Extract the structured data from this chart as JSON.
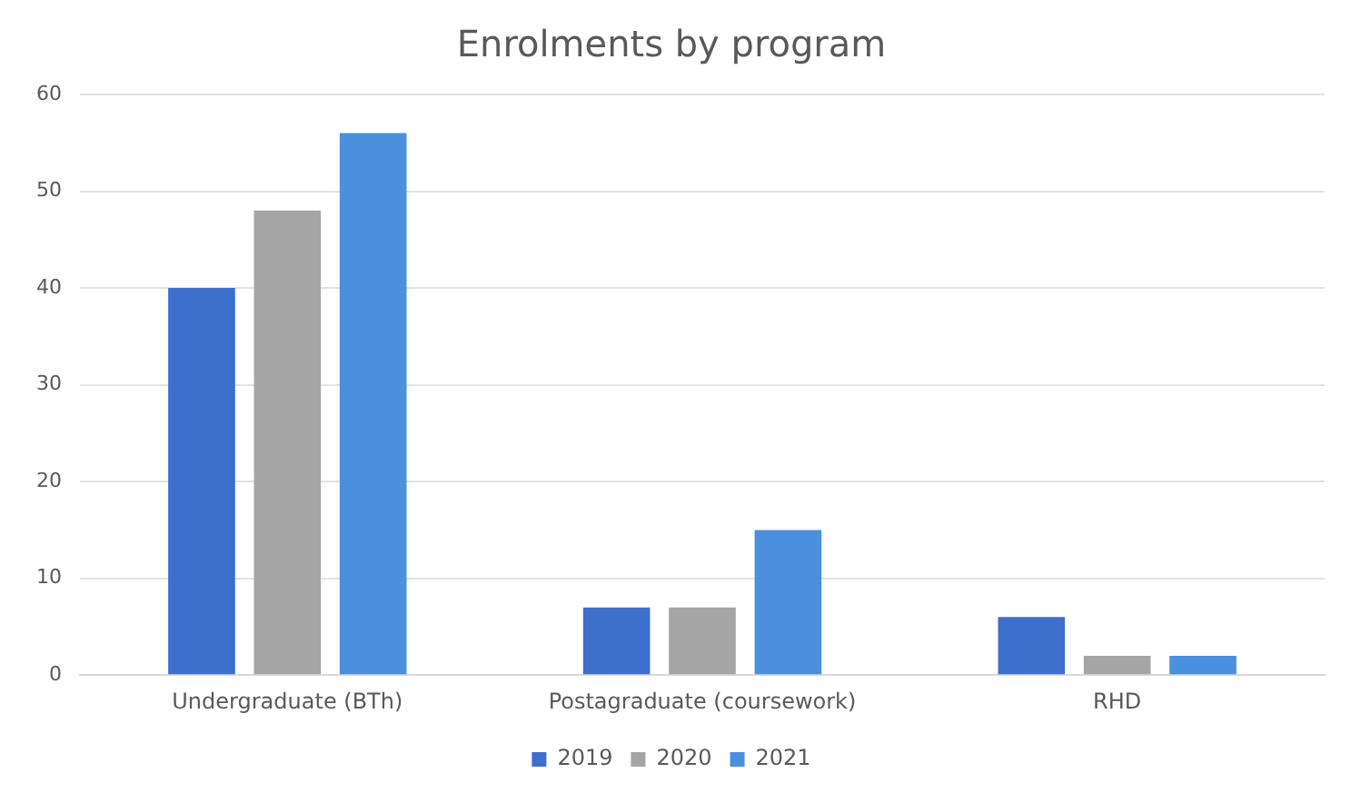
{
  "chart_data": {
    "type": "bar",
    "title": "Enrolments by program",
    "categories": [
      "Undergraduate (BTh)",
      "Postagraduate (coursework)",
      "RHD"
    ],
    "series": [
      {
        "name": "2019",
        "color": "#3d6fcc",
        "values": [
          40,
          7,
          6
        ]
      },
      {
        "name": "2020",
        "color": "#a5a5a5",
        "values": [
          48,
          7,
          2
        ]
      },
      {
        "name": "2021",
        "color": "#4a90dc",
        "values": [
          56,
          15,
          2
        ]
      }
    ],
    "ylim": [
      0,
      60
    ],
    "yticks": [
      0,
      10,
      20,
      30,
      40,
      50,
      60
    ],
    "grid": "y",
    "legend": "bottom"
  }
}
